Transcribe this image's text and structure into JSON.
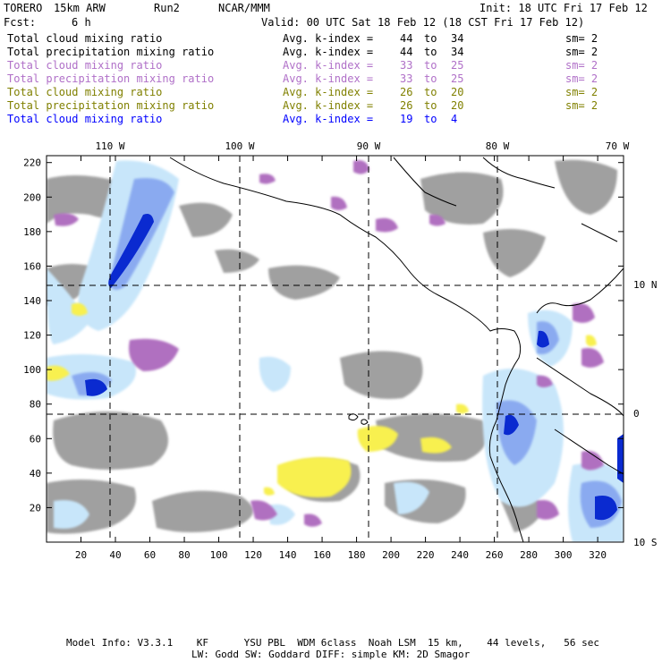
{
  "header": {
    "model": "TORERO",
    "resolution": "15km ARW",
    "run": "Run2",
    "org": "NCAR/MMM",
    "init": "Init: 18 UTC Fri 17 Feb 12",
    "fcst_label": "Fcst:",
    "fcst_value": "6 h",
    "valid": "Valid: 00 UTC Sat 18 Feb 12 (18 CST Fri 17 Feb 12)"
  },
  "legend_rows": [
    {
      "field": "Total cloud mixing ratio",
      "avg": "Avg. k-index =",
      "from": "44",
      "to_word": "to",
      "to": "34",
      "sm": "sm= 2",
      "color": "#000000"
    },
    {
      "field": "Total precipitation mixing ratio",
      "avg": "Avg. k-index =",
      "from": "44",
      "to_word": "to",
      "to": "34",
      "sm": "sm= 2",
      "color": "#000000"
    },
    {
      "field": "Total cloud mixing ratio",
      "avg": "Avg. k-index =",
      "from": "33",
      "to_word": "to",
      "to": "25",
      "sm": "sm= 2",
      "color": "#b070c8"
    },
    {
      "field": "Total precipitation mixing ratio",
      "avg": "Avg. k-index =",
      "from": "33",
      "to_word": "to",
      "to": "25",
      "sm": "sm= 2",
      "color": "#b070c8"
    },
    {
      "field": "Total cloud mixing ratio",
      "avg": "Avg. k-index =",
      "from": "26",
      "to_word": "to",
      "to": "20",
      "sm": "sm= 2",
      "color": "#808000"
    },
    {
      "field": "Total precipitation mixing ratio",
      "avg": "Avg. k-index =",
      "from": "26",
      "to_word": "to",
      "to": "20",
      "sm": "sm= 2",
      "color": "#808000"
    },
    {
      "field": "Total cloud mixing ratio",
      "avg": "Avg. k-index =",
      "from": "19",
      "to_word": "to",
      "to": "4",
      "sm": "",
      "color": "#0000ff"
    }
  ],
  "map": {
    "x_ticks": [
      "20",
      "40",
      "60",
      "80",
      "100",
      "120",
      "140",
      "160",
      "180",
      "200",
      "220",
      "240",
      "260",
      "280",
      "300",
      "320"
    ],
    "y_ticks": [
      "20",
      "40",
      "60",
      "80",
      "100",
      "120",
      "140",
      "160",
      "180",
      "200",
      "220"
    ],
    "lon_labels": [
      "110 W",
      "100 W",
      "90 W",
      "80 W",
      "70 W"
    ],
    "lat_labels": [
      "10 N",
      "0",
      "10 S"
    ],
    "colors": {
      "gray_cloud": "#a0a0a0",
      "light_blue": "#c8e6fa",
      "mid_blue": "#8aaaf0",
      "deep_blue": "#0a2ad0",
      "purple": "#b070c0",
      "yellow": "#f8f050",
      "coast": "#000000",
      "grid": "#000000"
    }
  },
  "footer": {
    "line1": "Model Info: V3.3.1    KF      YSU PBL  WDM 6class  Noah LSM  15 km,    44 levels,   56 sec",
    "line2": "LW: Godd SW: Goddard DIFF: simple KM: 2D Smagor"
  }
}
